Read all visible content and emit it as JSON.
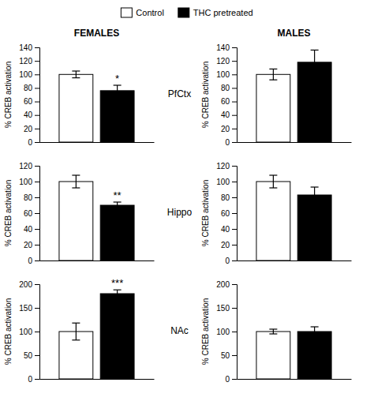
{
  "chart_data": [
    {
      "type": "bar",
      "title": "FEMALES",
      "subtitle": "PfCtx",
      "ylabel": "% CREB activation",
      "legend": "top",
      "categories": [
        null
      ],
      "series": [
        {
          "name": "Control",
          "color": "white",
          "values": [
            100
          ],
          "errors": [
            5
          ]
        },
        {
          "name": "THC pretreated",
          "color": "black",
          "values": [
            76
          ],
          "errors": [
            8
          ]
        }
      ],
      "annotations": [
        "*"
      ],
      "ylim": [
        0,
        140
      ],
      "yticks": [
        0,
        20,
        40,
        60,
        80,
        100,
        120,
        140
      ]
    },
    {
      "type": "bar",
      "title": "MALES",
      "ylabel": "% CREB activation",
      "categories": [
        null
      ],
      "series": [
        {
          "name": "Control",
          "color": "white",
          "values": [
            100
          ],
          "errors": [
            8
          ]
        },
        {
          "name": "THC pretreated",
          "color": "black",
          "values": [
            118
          ],
          "errors": [
            18
          ]
        }
      ],
      "ylim": [
        0,
        140
      ],
      "yticks": [
        0,
        20,
        40,
        60,
        80,
        100,
        120,
        140
      ]
    },
    {
      "type": "bar",
      "subtitle": "Hippo",
      "ylabel": "% CREB activation",
      "categories": [
        null
      ],
      "series": [
        {
          "name": "Control",
          "color": "white",
          "values": [
            100
          ],
          "errors": [
            8
          ]
        },
        {
          "name": "THC pretreated",
          "color": "black",
          "values": [
            70
          ],
          "errors": [
            4
          ]
        }
      ],
      "annotations": [
        "**"
      ],
      "ylim": [
        0,
        120
      ],
      "yticks": [
        0,
        20,
        40,
        60,
        80,
        100,
        120
      ]
    },
    {
      "type": "bar",
      "ylabel": "% CREB activation",
      "categories": [
        null
      ],
      "series": [
        {
          "name": "Control",
          "color": "white",
          "values": [
            100
          ],
          "errors": [
            8
          ]
        },
        {
          "name": "THC pretreated",
          "color": "black",
          "values": [
            83
          ],
          "errors": [
            10
          ]
        }
      ],
      "ylim": [
        0,
        120
      ],
      "yticks": [
        0,
        20,
        40,
        60,
        80,
        100,
        120
      ]
    },
    {
      "type": "bar",
      "subtitle": "NAc",
      "ylabel": "% CREB activation",
      "categories": [
        null
      ],
      "series": [
        {
          "name": "Control",
          "color": "white",
          "values": [
            100
          ],
          "errors": [
            18
          ]
        },
        {
          "name": "THC pretreated",
          "color": "black",
          "values": [
            180
          ],
          "errors": [
            8
          ]
        }
      ],
      "annotations": [
        "***"
      ],
      "ylim": [
        0,
        200
      ],
      "yticks": [
        0,
        50,
        100,
        150,
        200
      ]
    },
    {
      "type": "bar",
      "ylabel": "% CREB activation",
      "categories": [
        null
      ],
      "series": [
        {
          "name": "Control",
          "color": "white",
          "values": [
            100
          ],
          "errors": [
            5
          ]
        },
        {
          "name": "THC pretreated",
          "color": "black",
          "values": [
            100
          ],
          "errors": [
            10
          ]
        }
      ],
      "ylim": [
        0,
        200
      ],
      "yticks": [
        0,
        50,
        100,
        150,
        200
      ]
    }
  ]
}
